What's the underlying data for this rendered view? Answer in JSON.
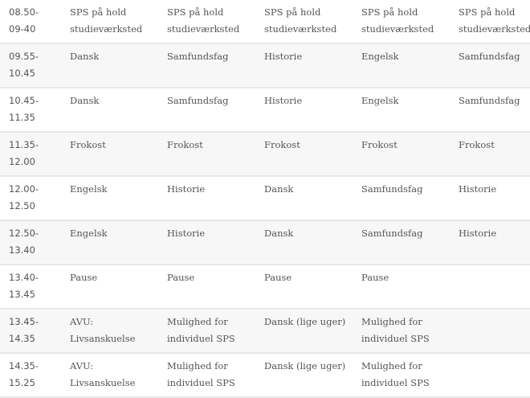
{
  "schedule": {
    "rows": [
      {
        "time": "08.50-\n09-40",
        "cells": [
          "SPS på hold studieværksted",
          "SPS på hold studieværksted",
          "SPS på hold studieværksted",
          "SPS på hold studieværksted",
          "SPS på hold studieværksted"
        ]
      },
      {
        "time": "09.55-\n10.45",
        "cells": [
          "Dansk",
          "Samfundsfag",
          "Historie",
          "Engelsk",
          "Samfundsfag"
        ]
      },
      {
        "time": "10.45-\n11.35",
        "cells": [
          "Dansk",
          "Samfundsfag",
          "Historie",
          "Engelsk",
          "Samfundsfag"
        ]
      },
      {
        "time": "11.35-\n12.00",
        "cells": [
          "Frokost",
          "Frokost",
          "Frokost",
          "Frokost",
          "Frokost"
        ]
      },
      {
        "time": "12.00-\n12.50",
        "cells": [
          "Engelsk",
          "Historie",
          "Dansk",
          "Samfundsfag",
          "Historie"
        ]
      },
      {
        "time": "12.50-\n13.40",
        "cells": [
          "Engelsk",
          "Historie",
          "Dansk",
          "Samfundsfag",
          "Historie"
        ]
      },
      {
        "time": "13.40-\n13.45",
        "cells": [
          "Pause",
          "Pause",
          "Pause",
          "Pause",
          ""
        ]
      },
      {
        "time": "13.45-\n14.35",
        "cells": [
          "AVU: Livsanskuelse",
          "Mulighed for individuel SPS",
          "Dansk (lige uger)",
          "Mulighed for individuel SPS",
          ""
        ]
      },
      {
        "time": "14.35-\n15.25",
        "cells": [
          "AVU: Livsanskuelse",
          "Mulighed for individuel SPS",
          "Dansk (lige uger)",
          "Mulighed for individuel SPS",
          ""
        ]
      }
    ]
  }
}
